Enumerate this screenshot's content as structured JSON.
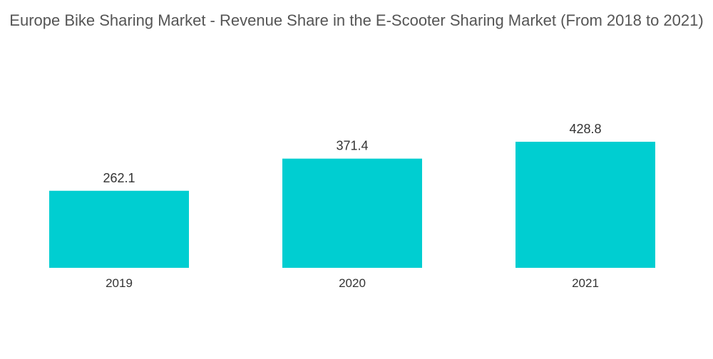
{
  "chart_data": {
    "type": "bar",
    "title": "Europe Bike Sharing Market - Revenue Share in the E-Scooter Sharing Market (From 2018 to 2021)",
    "xlabel": "",
    "ylabel": "",
    "categories": [
      "2019",
      "2020",
      "2021"
    ],
    "values": [
      262.1,
      371.4,
      428.8
    ],
    "value_labels": [
      "262.1",
      "371.4",
      "428.8"
    ],
    "ylim": [
      0,
      428.8
    ],
    "grid": false,
    "legend": "none",
    "bar_color": "#00CED1"
  }
}
